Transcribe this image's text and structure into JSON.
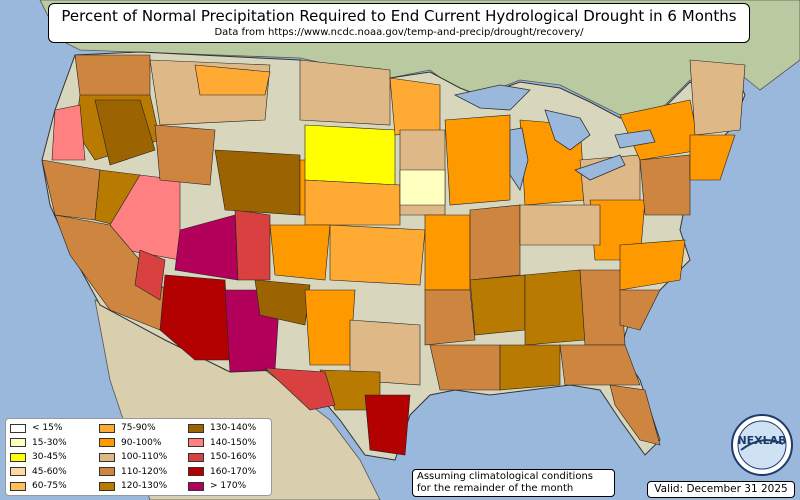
{
  "title": "Percent of Normal Precipitation Required to End Current Hydrological Drought in 6 Months",
  "subtitle": "Data from https://www.ncdc.noaa.gov/temp-and-precip/drought/recovery/",
  "note_line1": "Assuming climatological conditions",
  "note_line2": "for the remainder of the month",
  "valid": "Valid: December 31 2025",
  "logo_text": "NEXLAB",
  "colors": {
    "ocean": "#9ab8dc",
    "land": "#d8d6bc",
    "canada": "#b9c9a0",
    "mexico": "#d9cfae"
  },
  "legend": [
    {
      "label": "< 15%",
      "color": "#ffffff"
    },
    {
      "label": "15-30%",
      "color": "#ffffc0"
    },
    {
      "label": "30-45%",
      "color": "#ffff00"
    },
    {
      "label": "45-60%",
      "color": "#ffd9a0"
    },
    {
      "label": "60-75%",
      "color": "#ffbf5a"
    },
    {
      "label": "75-90%",
      "color": "#ffaa33"
    },
    {
      "label": "90-100%",
      "color": "#ff9900"
    },
    {
      "label": "100-110%",
      "color": "#deb887"
    },
    {
      "label": "110-120%",
      "color": "#cd853f"
    },
    {
      "label": "120-130%",
      "color": "#b87a00"
    },
    {
      "label": "130-140%",
      "color": "#9c6400"
    },
    {
      "label": "140-150%",
      "color": "#ff8080"
    },
    {
      "label": "150-160%",
      "color": "#d94040"
    },
    {
      "label": "160-170%",
      "color": "#b30000"
    },
    {
      "label": "> 170%",
      "color": "#b3005a"
    }
  ]
}
